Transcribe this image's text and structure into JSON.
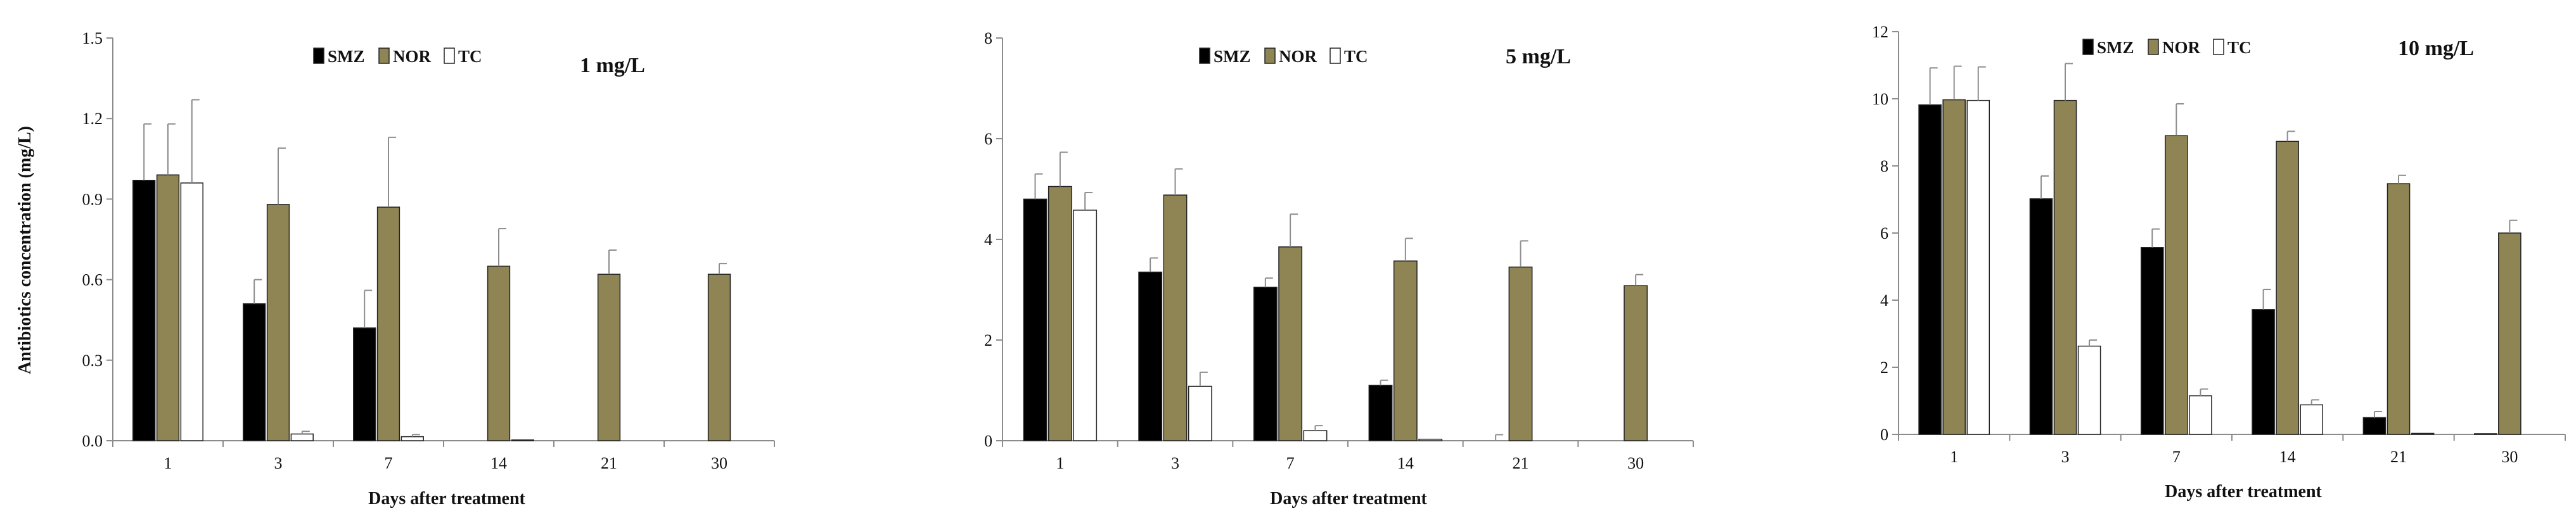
{
  "colors": {
    "SMZ": "#000000",
    "NOR": "#8f8554",
    "TC": "#ffffff",
    "axis": "#8c8c8c",
    "err": "#8c8c8c"
  },
  "chart_data": [
    {
      "type": "bar",
      "concentration_label": "1 mg/L",
      "xlabel": "Days after treatment",
      "ylabel": "Antibiotics concentration (mg/L)",
      "categories": [
        "1",
        "3",
        "7",
        "14",
        "21",
        "30"
      ],
      "ylim": [
        0,
        1.5
      ],
      "yticks": [
        "0.0",
        "0.3",
        "0.6",
        "0.9",
        "1.2",
        "1.5"
      ],
      "legend": [
        "SMZ",
        "NOR",
        "TC"
      ],
      "legend_placement": "top-center",
      "series": [
        {
          "name": "SMZ",
          "values": [
            0.97,
            0.51,
            0.42,
            0,
            0,
            0
          ],
          "errors": [
            0.21,
            0.09,
            0.14,
            0,
            0,
            0
          ]
        },
        {
          "name": "NOR",
          "values": [
            0.99,
            0.88,
            0.87,
            0.65,
            0.62,
            0.62
          ],
          "errors": [
            0.19,
            0.21,
            0.26,
            0.14,
            0.09,
            0.04
          ]
        },
        {
          "name": "TC",
          "values": [
            0.96,
            0.025,
            0.015,
            0.003,
            0,
            0
          ],
          "errors": [
            0.31,
            0.01,
            0.008,
            0,
            0,
            0
          ]
        }
      ]
    },
    {
      "type": "bar",
      "concentration_label": "5 mg/L",
      "xlabel": "Days after treatment",
      "ylabel": "",
      "categories": [
        "1",
        "3",
        "7",
        "14",
        "21",
        "30"
      ],
      "ylim": [
        0,
        8
      ],
      "yticks": [
        "0",
        "2",
        "4",
        "6",
        "8"
      ],
      "legend": [
        "SMZ",
        "NOR",
        "TC"
      ],
      "legend_placement": "top-center",
      "series": [
        {
          "name": "SMZ",
          "values": [
            4.8,
            3.35,
            3.05,
            1.1,
            0,
            0
          ],
          "errors": [
            0.5,
            0.28,
            0.18,
            0.1,
            0.12,
            0
          ]
        },
        {
          "name": "NOR",
          "values": [
            5.05,
            4.88,
            3.85,
            3.57,
            3.45,
            3.08
          ],
          "errors": [
            0.68,
            0.52,
            0.65,
            0.45,
            0.52,
            0.22
          ]
        },
        {
          "name": "TC",
          "values": [
            4.58,
            1.08,
            0.2,
            0.03,
            0,
            0
          ],
          "errors": [
            0.35,
            0.28,
            0.1,
            0,
            0,
            0
          ]
        }
      ]
    },
    {
      "type": "bar",
      "concentration_label": "10 mg/L",
      "xlabel": "Days after treatment",
      "ylabel": "",
      "categories": [
        "1",
        "3",
        "7",
        "14",
        "21",
        "30"
      ],
      "ylim": [
        0,
        12
      ],
      "yticks": [
        "0",
        "2",
        "4",
        "6",
        "8",
        "10",
        "12"
      ],
      "legend": [
        "SMZ",
        "NOR",
        "TC"
      ],
      "legend_placement": "top-center",
      "series": [
        {
          "name": "SMZ",
          "values": [
            9.82,
            7.02,
            5.57,
            3.72,
            0.5,
            0.02
          ],
          "errors": [
            1.1,
            0.68,
            0.55,
            0.6,
            0.18,
            0
          ]
        },
        {
          "name": "NOR",
          "values": [
            9.97,
            9.95,
            8.9,
            8.73,
            7.47,
            6.0
          ],
          "errors": [
            1.0,
            1.1,
            0.95,
            0.3,
            0.25,
            0.38
          ]
        },
        {
          "name": "TC",
          "values": [
            9.95,
            2.63,
            1.15,
            0.88,
            0.03,
            0
          ],
          "errors": [
            1.0,
            0.18,
            0.2,
            0.15,
            0,
            0
          ]
        }
      ]
    }
  ]
}
